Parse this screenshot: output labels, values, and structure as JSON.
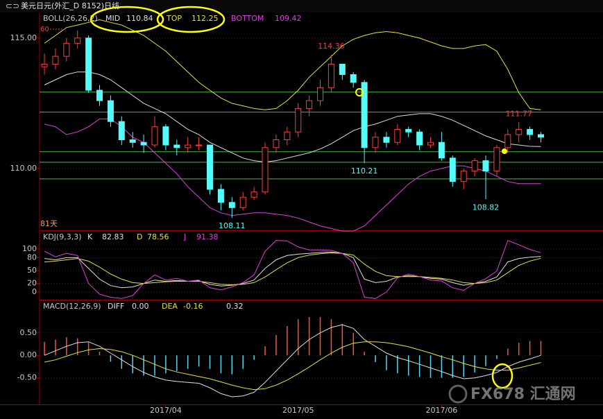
{
  "window": {
    "title": "美元日元(外汇_D 8152)日线"
  },
  "watermark": "FX678 汇通网",
  "chart_data": [
    {
      "type": "candlestick",
      "title": "BOLL(26,26,2)",
      "categories": [
        null,
        null,
        null,
        null,
        null,
        null,
        null,
        null,
        null,
        null,
        null,
        "2017/04",
        null,
        null,
        null,
        null,
        null,
        null,
        null,
        null,
        null,
        null,
        null,
        "2017/05",
        null,
        null,
        null,
        null,
        null,
        null,
        null,
        null,
        null,
        null,
        null,
        null,
        "2017/06",
        null,
        null,
        null,
        null,
        null,
        null,
        null,
        null,
        null
      ],
      "open": [
        113.9,
        114.0,
        114.3,
        114.8,
        115.0,
        113.0,
        112.6,
        111.8,
        111.1,
        111.0,
        110.9,
        111.6,
        110.9,
        110.8,
        110.9,
        110.9,
        109.2,
        108.7,
        108.5,
        108.9,
        109.1,
        110.8,
        111.1,
        111.4,
        112.3,
        112.6,
        113.1,
        114.0,
        113.6,
        113.3,
        110.8,
        111.2,
        111.0,
        111.5,
        111.4,
        110.9,
        111.0,
        110.4,
        109.5,
        109.9,
        110.3,
        109.9,
        110.8,
        111.3,
        111.5,
        111.3
      ],
      "high": [
        114.4,
        114.6,
        115.0,
        115.3,
        115.1,
        113.2,
        112.8,
        112.0,
        111.4,
        111.3,
        112.0,
        111.7,
        111.1,
        111.2,
        111.2,
        110.9,
        109.4,
        108.9,
        109.1,
        109.3,
        111.0,
        111.3,
        111.6,
        112.5,
        112.8,
        113.4,
        114.36,
        114.0,
        113.7,
        113.4,
        111.4,
        111.4,
        111.7,
        111.6,
        111.5,
        111.2,
        111.4,
        110.5,
        110.0,
        110.4,
        110.5,
        110.9,
        111.5,
        111.77,
        111.6,
        111.4
      ],
      "low": [
        113.6,
        113.8,
        114.1,
        114.6,
        112.9,
        112.4,
        111.6,
        110.9,
        110.8,
        110.6,
        110.8,
        110.7,
        110.5,
        110.6,
        110.7,
        109.0,
        108.4,
        108.11,
        108.4,
        108.8,
        109.0,
        110.6,
        110.9,
        111.2,
        112.0,
        112.4,
        112.9,
        113.4,
        113.1,
        110.21,
        110.6,
        110.8,
        110.9,
        111.2,
        110.7,
        110.8,
        110.3,
        109.3,
        109.2,
        109.7,
        108.82,
        109.7,
        110.6,
        111.0,
        111.1,
        111.0
      ],
      "close": [
        114.0,
        114.3,
        114.8,
        115.0,
        113.0,
        112.6,
        111.8,
        111.1,
        111.0,
        110.9,
        111.6,
        110.9,
        110.8,
        110.9,
        110.9,
        109.2,
        108.7,
        108.5,
        108.9,
        109.1,
        110.8,
        111.1,
        111.4,
        112.3,
        112.6,
        113.1,
        114.0,
        113.6,
        113.3,
        110.8,
        111.2,
        111.0,
        111.5,
        111.4,
        110.9,
        111.0,
        110.4,
        109.5,
        109.9,
        110.3,
        109.9,
        110.8,
        111.3,
        111.5,
        111.3,
        111.2
      ],
      "up_color": "#ff3c3c",
      "down_color": "#54fcfc",
      "series": [
        {
          "name": "MID",
          "color": "#e0e0e0",
          "values": [
            113.2,
            113.4,
            113.6,
            113.7,
            113.7,
            113.6,
            113.4,
            113.1,
            112.8,
            112.5,
            112.3,
            112.1,
            111.8,
            111.5,
            111.3,
            111.0,
            110.8,
            110.6,
            110.4,
            110.3,
            110.25,
            110.3,
            110.4,
            110.5,
            110.6,
            110.75,
            110.95,
            111.2,
            111.45,
            111.6,
            111.7,
            111.85,
            112.0,
            112.05,
            112.1,
            112.1,
            112.0,
            111.85,
            111.65,
            111.45,
            111.25,
            111.1,
            110.95,
            110.9,
            110.85,
            110.84
          ]
        },
        {
          "name": "TOP",
          "color": "#e8e040",
          "values": [
            114.8,
            115.1,
            115.4,
            115.5,
            115.6,
            115.7,
            115.6,
            115.5,
            115.3,
            115.1,
            114.8,
            114.5,
            114.1,
            113.7,
            113.3,
            113.0,
            112.7,
            112.5,
            112.4,
            112.3,
            112.25,
            112.3,
            112.6,
            113.0,
            113.5,
            113.9,
            114.3,
            114.7,
            114.95,
            115.1,
            115.2,
            115.25,
            115.2,
            115.1,
            115.0,
            114.85,
            114.7,
            114.6,
            114.6,
            114.7,
            114.75,
            114.5,
            113.8,
            112.9,
            112.3,
            112.25
          ]
        },
        {
          "name": "BOTTOM",
          "color": "#e040e0",
          "values": [
            111.7,
            111.6,
            111.3,
            111.4,
            111.6,
            111.9,
            111.9,
            111.6,
            111.2,
            111.0,
            110.6,
            110.2,
            109.8,
            109.3,
            108.9,
            108.5,
            108.3,
            108.2,
            108.25,
            108.3,
            108.3,
            108.25,
            108.2,
            108.1,
            107.95,
            107.8,
            107.7,
            107.6,
            107.6,
            107.8,
            108.2,
            108.6,
            109.0,
            109.4,
            109.7,
            109.9,
            110.0,
            110.1,
            110.1,
            110.0,
            109.9,
            109.7,
            109.5,
            109.42,
            109.42,
            109.42
          ]
        }
      ],
      "hlines": [
        112.93,
        112.16,
        110.64,
        110.24,
        109.6
      ],
      "hline_color": "#40c040",
      "annotations": [
        "81天",
        "60"
      ],
      "ylim": [
        107.63,
        115.98
      ],
      "yticks": [
        {
          "value": 115,
          "label": "115.00"
        },
        {
          "value": 110,
          "label": "110.00"
        }
      ],
      "grid": true
    },
    {
      "type": "line",
      "title": "KDJ(9,3,3)",
      "series": [
        {
          "name": "K",
          "color": "#e0e0e0",
          "values": [
            78,
            75,
            80,
            80,
            55,
            30,
            15,
            10,
            12,
            20,
            28,
            25,
            27,
            25,
            26,
            18,
            14,
            16,
            20,
            28,
            55,
            75,
            85,
            88,
            90,
            92,
            93,
            90,
            80,
            30,
            22,
            25,
            35,
            38,
            36,
            32,
            30,
            22,
            16,
            20,
            25,
            35,
            70,
            78,
            81,
            82.83
          ]
        },
        {
          "name": "D",
          "color": "#e8e040",
          "values": [
            70,
            72,
            75,
            78,
            72,
            58,
            42,
            30,
            22,
            20,
            22,
            24,
            25,
            25,
            25,
            22,
            18,
            17,
            18,
            22,
            35,
            52,
            68,
            80,
            86,
            89,
            91,
            90,
            86,
            65,
            48,
            38,
            36,
            36,
            36,
            34,
            32,
            28,
            22,
            20,
            22,
            28,
            45,
            62,
            72,
            78.56
          ]
        },
        {
          "name": "J",
          "color": "#e040e0",
          "values": [
            95,
            82,
            90,
            85,
            20,
            -5,
            -12,
            -15,
            -8,
            20,
            40,
            28,
            32,
            25,
            28,
            10,
            5,
            12,
            22,
            40,
            95,
            120,
            119,
            105,
            98,
            98,
            97,
            90,
            68,
            -12,
            -15,
            0,
            33,
            42,
            36,
            28,
            26,
            10,
            4,
            20,
            31,
            49,
            120,
            110,
            99,
            91.38
          ]
        }
      ],
      "ylim": [
        -17.7,
        141.9
      ],
      "yticks": [
        100,
        80,
        50,
        20,
        0
      ],
      "grid": true
    },
    {
      "type": "combo",
      "title": "MACD(12,26,9)",
      "series": [
        {
          "name": "DIFF",
          "color": "#e0e0e0",
          "values": [
            0.0,
            0.1,
            0.2,
            0.28,
            0.3,
            0.2,
            0.05,
            -0.1,
            -0.25,
            -0.38,
            -0.48,
            -0.55,
            -0.58,
            -0.6,
            -0.62,
            -0.72,
            -0.85,
            -0.92,
            -0.9,
            -0.82,
            -0.6,
            -0.35,
            -0.1,
            0.15,
            0.35,
            0.5,
            0.62,
            0.68,
            0.6,
            0.35,
            0.2,
            0.05,
            -0.05,
            -0.12,
            -0.2,
            -0.28,
            -0.36,
            -0.45,
            -0.52,
            -0.5,
            -0.45,
            -0.38,
            -0.25,
            -0.15,
            -0.08,
            0.0
          ],
          "value_labels": {
            "45": "0.00"
          }
        },
        {
          "name": "DEA",
          "color": "#e8e040",
          "values": [
            -0.15,
            -0.1,
            -0.02,
            0.06,
            0.12,
            0.15,
            0.13,
            0.08,
            0.0,
            -0.1,
            -0.2,
            -0.3,
            -0.37,
            -0.42,
            -0.47,
            -0.52,
            -0.59,
            -0.66,
            -0.72,
            -0.76,
            -0.74,
            -0.66,
            -0.55,
            -0.41,
            -0.26,
            -0.1,
            0.05,
            0.18,
            0.27,
            0.3,
            0.3,
            0.28,
            0.24,
            0.19,
            0.12,
            0.05,
            -0.03,
            -0.1,
            -0.18,
            -0.25,
            -0.3,
            -0.33,
            -0.33,
            -0.28,
            -0.22,
            -0.16
          ]
        }
      ],
      "histogram": [
        0.3,
        0.35,
        0.4,
        0.38,
        0.3,
        0.08,
        -0.14,
        -0.3,
        -0.4,
        -0.45,
        -0.45,
        -0.4,
        -0.35,
        -0.3,
        -0.25,
        -0.3,
        -0.4,
        -0.42,
        -0.3,
        -0.1,
        0.2,
        0.45,
        0.65,
        0.8,
        0.85,
        0.85,
        0.8,
        0.7,
        0.5,
        0.08,
        -0.15,
        -0.33,
        -0.4,
        -0.45,
        -0.48,
        -0.5,
        -0.5,
        -0.5,
        -0.48,
        -0.38,
        -0.24,
        -0.08,
        0.15,
        0.28,
        0.32,
        0.32
      ],
      "ylim": [
        -1.09,
        1.22
      ],
      "yticks": [
        {
          "value": 0.5,
          "label": "0.50"
        },
        {
          "value": 0,
          "label": "0.00"
        },
        {
          "value": -0.5,
          "label": "-0.50"
        }
      ],
      "grid": true
    }
  ]
}
